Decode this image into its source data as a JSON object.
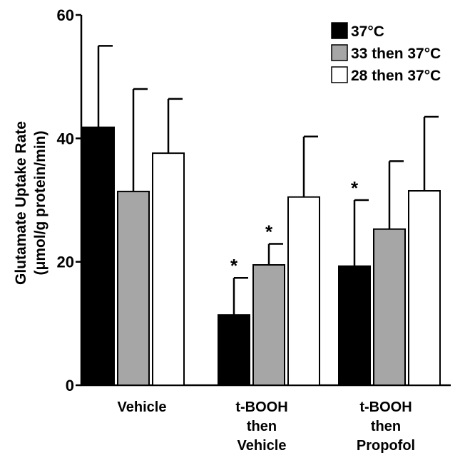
{
  "chart_data": {
    "type": "bar",
    "ylabel_line1": "Glutamate Uptake Rate",
    "ylabel_line2": "(μmol/g protein/min)",
    "ylim": [
      0,
      60
    ],
    "yticks": [
      0,
      20,
      40,
      60
    ],
    "grid": false,
    "legend_position": "top-right",
    "categories": [
      {
        "lines": [
          "Vehicle"
        ]
      },
      {
        "lines": [
          "t-BOOH",
          "then",
          "Vehicle"
        ]
      },
      {
        "lines": [
          "t-BOOH",
          "then",
          "Propofol"
        ]
      }
    ],
    "series": [
      {
        "name": "37°C",
        "color": "#000000",
        "values": [
          41.8,
          11.4,
          19.3
        ],
        "errors": [
          13.2,
          6.0,
          10.7
        ],
        "significant": [
          false,
          true,
          true
        ]
      },
      {
        "name": "33 then 37°C",
        "color": "#a6a6a6",
        "values": [
          31.4,
          19.5,
          25.3
        ],
        "errors": [
          16.6,
          3.4,
          11.0
        ],
        "significant": [
          false,
          true,
          false
        ]
      },
      {
        "name": "28 then 37°C",
        "color": "#ffffff",
        "values": [
          37.6,
          30.5,
          31.5
        ],
        "errors": [
          8.8,
          9.8,
          12.0
        ],
        "significant": [
          false,
          false,
          false
        ]
      }
    ],
    "significance_marker": "*"
  }
}
